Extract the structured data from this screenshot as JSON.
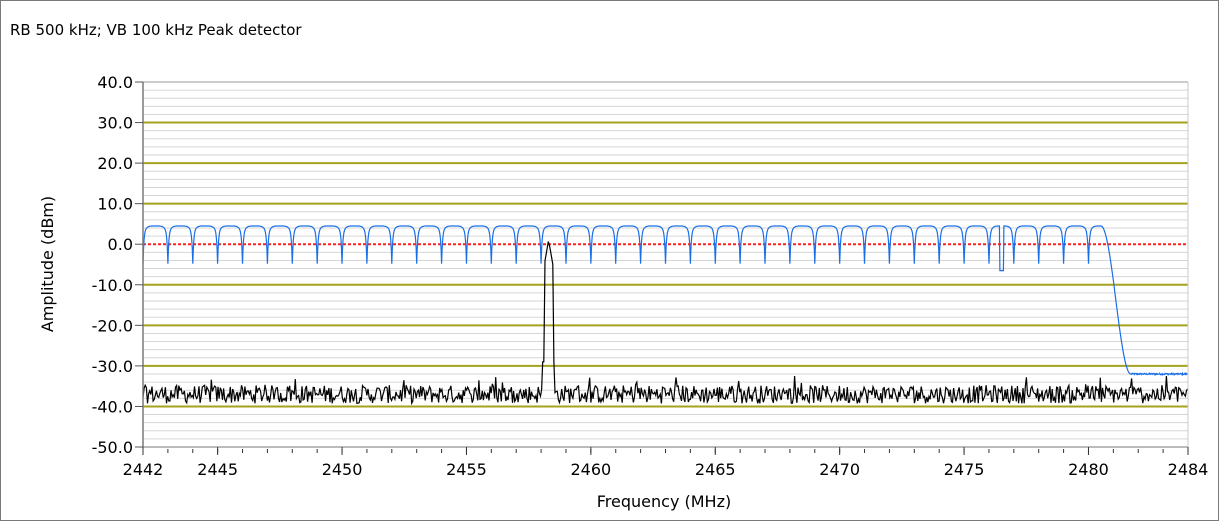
{
  "header": "RB 500 kHz; VB 100 kHz Peak detector",
  "chart_data": {
    "type": "line",
    "xlabel": "Frequency (MHz)",
    "ylabel": "Amplitude (dBm)",
    "xlim": [
      2442,
      2484
    ],
    "ylim": [
      -50,
      40
    ],
    "x_ticks": [
      2442,
      2445,
      2450,
      2455,
      2460,
      2465,
      2470,
      2475,
      2480,
      2484
    ],
    "y_ticks": [
      "40.0",
      "30.0",
      "20.0",
      "10.0",
      "0.0",
      "-10.0",
      "-20.0",
      "-30.0",
      "-40.0",
      "-50.0"
    ],
    "grid": true,
    "reference_line": {
      "y": 0.0,
      "color": "#ff2020"
    },
    "series": [
      {
        "color": "#1a6fe8",
        "description": "scalloped spectrum ~ -4 to +4.5 dBm from 2442 to 2480.5 MHz, drops to -32 dBm above 2481.5 MHz",
        "peak_spacing_mhz": 1.0,
        "max_dbm": 4.5,
        "min_dbm": -5,
        "rolloff_start_mhz": 2480.5,
        "rolloff_end_mhz": 2481.7,
        "tail_dbm": -32
      },
      {
        "color": "#000000",
        "description": "noise floor around -37 dBm with single carrier at 2458.3 MHz reaching +1 dBm",
        "noise_dbm": -37,
        "carrier_mhz": 2458.3,
        "carrier_dbm": 1.0
      }
    ],
    "colors": {
      "grid_major": "#a4a21e",
      "grid_minor": "#d6d6d6",
      "axis": "#7a7a7a"
    }
  }
}
